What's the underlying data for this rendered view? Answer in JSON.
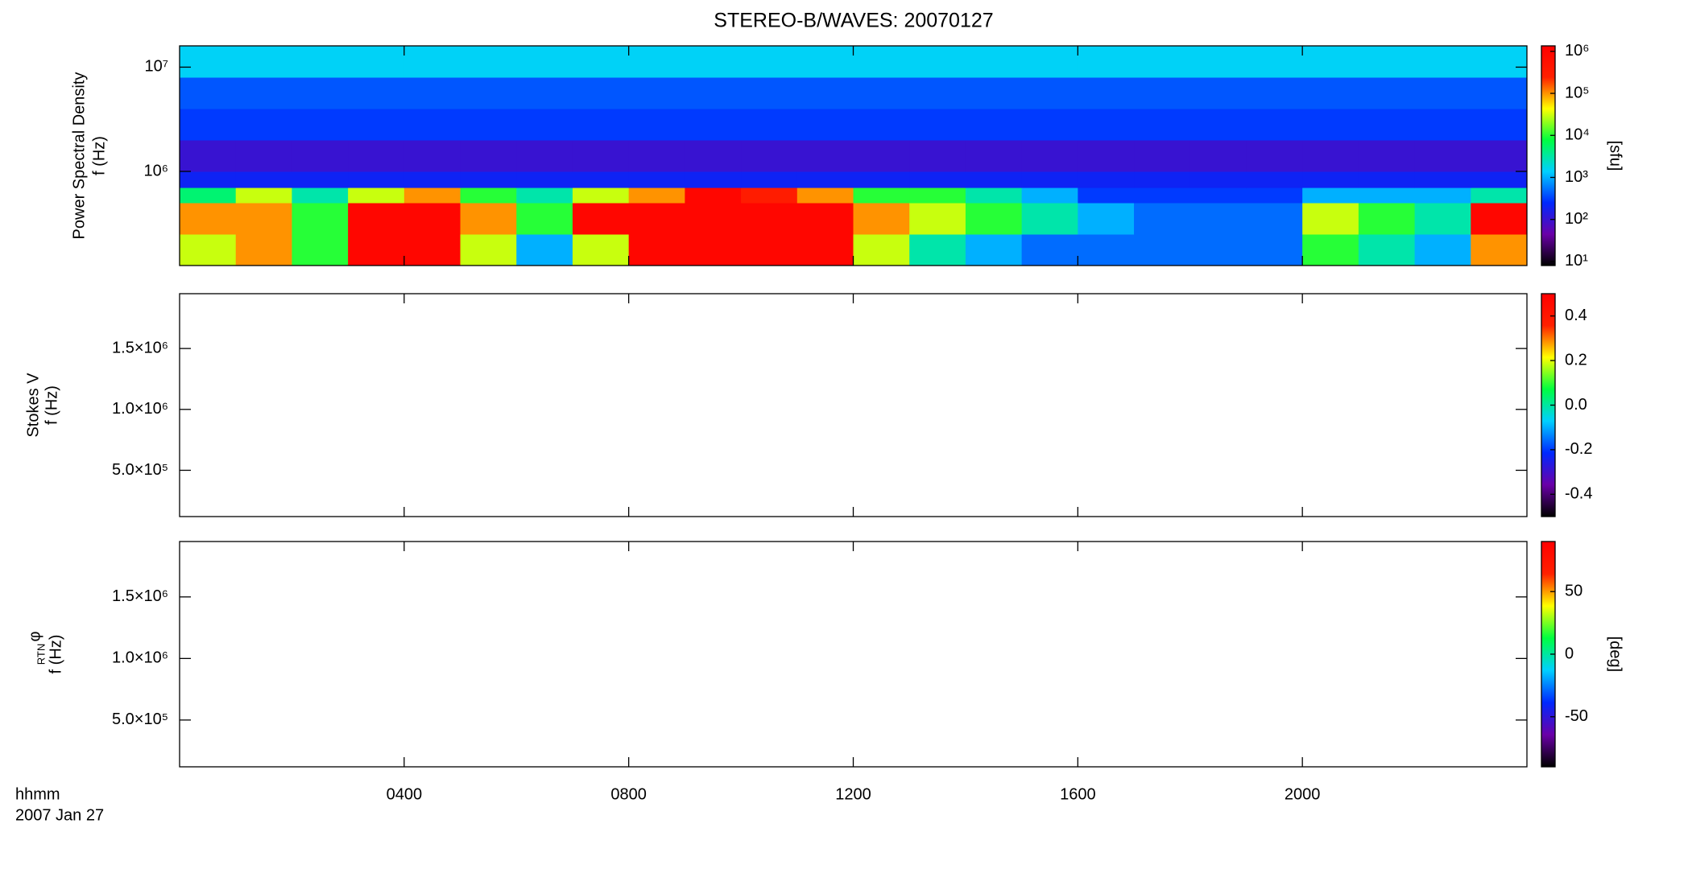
{
  "chart_data": [
    {
      "type": "heatmap",
      "title": "STEREO-B/WAVES: 20070127",
      "ylabel": "Power Spectral Density",
      "ylabel2": "f (Hz)",
      "ylog": true,
      "ylim": [
        125000,
        16000000
      ],
      "yticks": [
        {
          "value": 1000000,
          "label": "10⁶"
        },
        {
          "value": 10000000,
          "label": "10⁷"
        }
      ],
      "xlim": [
        0,
        24
      ],
      "xticks": [
        4,
        8,
        12,
        16,
        20
      ],
      "x_bins": [
        0,
        1,
        2,
        3,
        4,
        5,
        6,
        7,
        8,
        9,
        10,
        11,
        12,
        13,
        14,
        15,
        16,
        17,
        18,
        19,
        20,
        21,
        22,
        23,
        24
      ],
      "y_bins": [
        125000,
        250000,
        500000,
        700000,
        1000000,
        2000000,
        4000000,
        8000000,
        16000000
      ],
      "z": [
        [
          30000,
          100000,
          10000,
          1000000,
          1000000,
          30000,
          1000,
          30000,
          1000000,
          1000000,
          1000000,
          1000000,
          30000,
          3000,
          1000,
          500,
          500,
          500,
          500,
          500,
          10000,
          3000,
          1000,
          100000
        ],
        [
          100000,
          100000,
          10000,
          1000000,
          1000000,
          100000,
          10000,
          1000000,
          1000000,
          1000000,
          1000000,
          1000000,
          100000,
          30000,
          10000,
          3000,
          1000,
          500,
          500,
          500,
          30000,
          10000,
          3000,
          1000000
        ],
        [
          5000,
          30000,
          3000,
          30000,
          100000,
          10000,
          3000,
          30000,
          100000,
          1000000,
          300000,
          100000,
          10000,
          10000,
          3000,
          1000,
          300,
          300,
          300,
          300,
          1000,
          1000,
          1000,
          3000
        ],
        [
          200,
          200,
          200,
          200,
          200,
          200,
          200,
          200,
          200,
          200,
          200,
          200,
          200,
          200,
          200,
          200,
          200,
          200,
          200,
          200,
          200,
          200,
          200,
          200
        ],
        [
          100,
          100,
          100,
          100,
          100,
          100,
          100,
          100,
          100,
          100,
          100,
          100,
          100,
          100,
          100,
          100,
          100,
          100,
          100,
          100,
          100,
          100,
          100,
          100
        ],
        [
          300,
          300,
          300,
          300,
          300,
          300,
          300,
          300,
          300,
          300,
          300,
          300,
          300,
          300,
          300,
          300,
          300,
          300,
          300,
          300,
          300,
          300,
          300,
          300
        ],
        [
          400,
          400,
          400,
          400,
          400,
          400,
          400,
          400,
          400,
          400,
          400,
          400,
          400,
          400,
          400,
          400,
          400,
          400,
          400,
          400,
          400,
          400,
          400,
          400
        ],
        [
          1500,
          1500,
          1500,
          1500,
          1500,
          1500,
          1500,
          1500,
          1500,
          1500,
          1500,
          1500,
          1500,
          1500,
          1500,
          1500,
          1500,
          1500,
          1500,
          1500,
          1500,
          1500,
          1500,
          1500
        ]
      ],
      "zlog": true,
      "zlim": [
        8,
        1350000
      ],
      "zticks": [
        {
          "value": 10,
          "label": "10¹"
        },
        {
          "value": 100,
          "label": "10²"
        },
        {
          "value": 1000,
          "label": "10³"
        },
        {
          "value": 10000,
          "label": "10⁴"
        },
        {
          "value": 100000,
          "label": "10⁵"
        },
        {
          "value": 1000000,
          "label": "10⁶"
        }
      ],
      "zlabel": "[sfu]",
      "colormap": [
        "#000000",
        "#6a00a8",
        "#0028ff",
        "#00d0ff",
        "#00ff40",
        "#ffff00",
        "#ff2000",
        "#ff0000"
      ]
    },
    {
      "type": "empty",
      "ylabel": "Stokes V",
      "ylabel2": "f (Hz)",
      "ylog": false,
      "ylim": [
        120000,
        1950000
      ],
      "yticks": [
        {
          "value": 500000,
          "label": "5.0×10⁵"
        },
        {
          "value": 1000000,
          "label": "1.0×10⁶"
        },
        {
          "value": 1500000,
          "label": "1.5×10⁶"
        }
      ],
      "xlim": [
        0,
        24
      ],
      "xticks": [
        4,
        8,
        12,
        16,
        20
      ],
      "zlog": false,
      "zlim": [
        -0.5,
        0.5
      ],
      "zticks": [
        -0.4,
        -0.2,
        {
          "value": 0,
          "label": "0.0"
        },
        0.2,
        0.4
      ],
      "colormap": [
        "#000000",
        "#6a00a8",
        "#0028ff",
        "#00d0ff",
        "#00ff40",
        "#ffff00",
        "#ff2000",
        "#ff0000"
      ]
    },
    {
      "type": "empty",
      "ylabel_symbol": "φ",
      "ylabel_subscript": "RTN",
      "ylabel2": "f (Hz)",
      "ylog": false,
      "ylim": [
        120000,
        1950000
      ],
      "yticks": [
        {
          "value": 500000,
          "label": "5.0×10⁵"
        },
        {
          "value": 1000000,
          "label": "1.0×10⁶"
        },
        {
          "value": 1500000,
          "label": "1.5×10⁶"
        }
      ],
      "xlim": [
        0,
        24
      ],
      "xticks": [
        {
          "value": 4,
          "label": "0400"
        },
        {
          "value": 8,
          "label": "0800"
        },
        {
          "value": 12,
          "label": "1200"
        },
        {
          "value": 16,
          "label": "1600"
        },
        {
          "value": 20,
          "label": "2000"
        }
      ],
      "xlabel": "hhmm",
      "date_label": "2007 Jan 27",
      "zlog": false,
      "zlim": [
        -90,
        90
      ],
      "zticks": [
        -50,
        0,
        50
      ],
      "zlabel": "[deg]",
      "colormap": [
        "#000000",
        "#6a00a8",
        "#0028ff",
        "#00d0ff",
        "#00ff40",
        "#ffff00",
        "#ff2000",
        "#ff0000"
      ]
    }
  ]
}
